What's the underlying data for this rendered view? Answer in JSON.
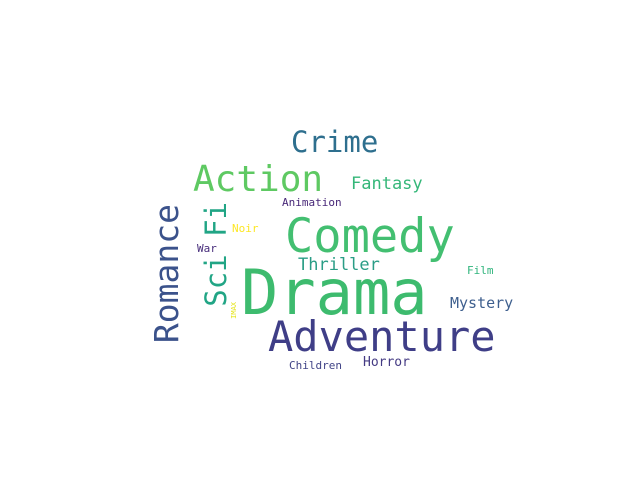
{
  "words": {
    "drama": {
      "text": "Drama",
      "color": "#3dbb6e"
    },
    "comedy": {
      "text": "Comedy",
      "color": "#43bf71"
    },
    "adventure": {
      "text": "Adventure",
      "color": "#3f3e87"
    },
    "action": {
      "text": "Action",
      "color": "#5ec962"
    },
    "crime": {
      "text": "Crime",
      "color": "#2e6f8e"
    },
    "fantasy": {
      "text": "Fantasy",
      "color": "#35b779"
    },
    "thriller": {
      "text": "Thriller",
      "color": "#2a9d86"
    },
    "mystery": {
      "text": "Mystery",
      "color": "#3e5f8e"
    },
    "animation": {
      "text": "Animation",
      "color": "#482878"
    },
    "noir": {
      "text": "Noir",
      "color": "#fde725"
    },
    "war": {
      "text": "War",
      "color": "#472d7b"
    },
    "film": {
      "text": "Film",
      "color": "#2fb47c"
    },
    "children": {
      "text": "Children",
      "color": "#414487"
    },
    "horror": {
      "text": "Horror",
      "color": "#443a83"
    },
    "romance": {
      "text": "Romance",
      "color": "#3b528b"
    },
    "scifi": {
      "text": "Sci Fi",
      "color": "#21a585"
    },
    "imax": {
      "text": "IMAX",
      "color": "#e5e419"
    }
  }
}
